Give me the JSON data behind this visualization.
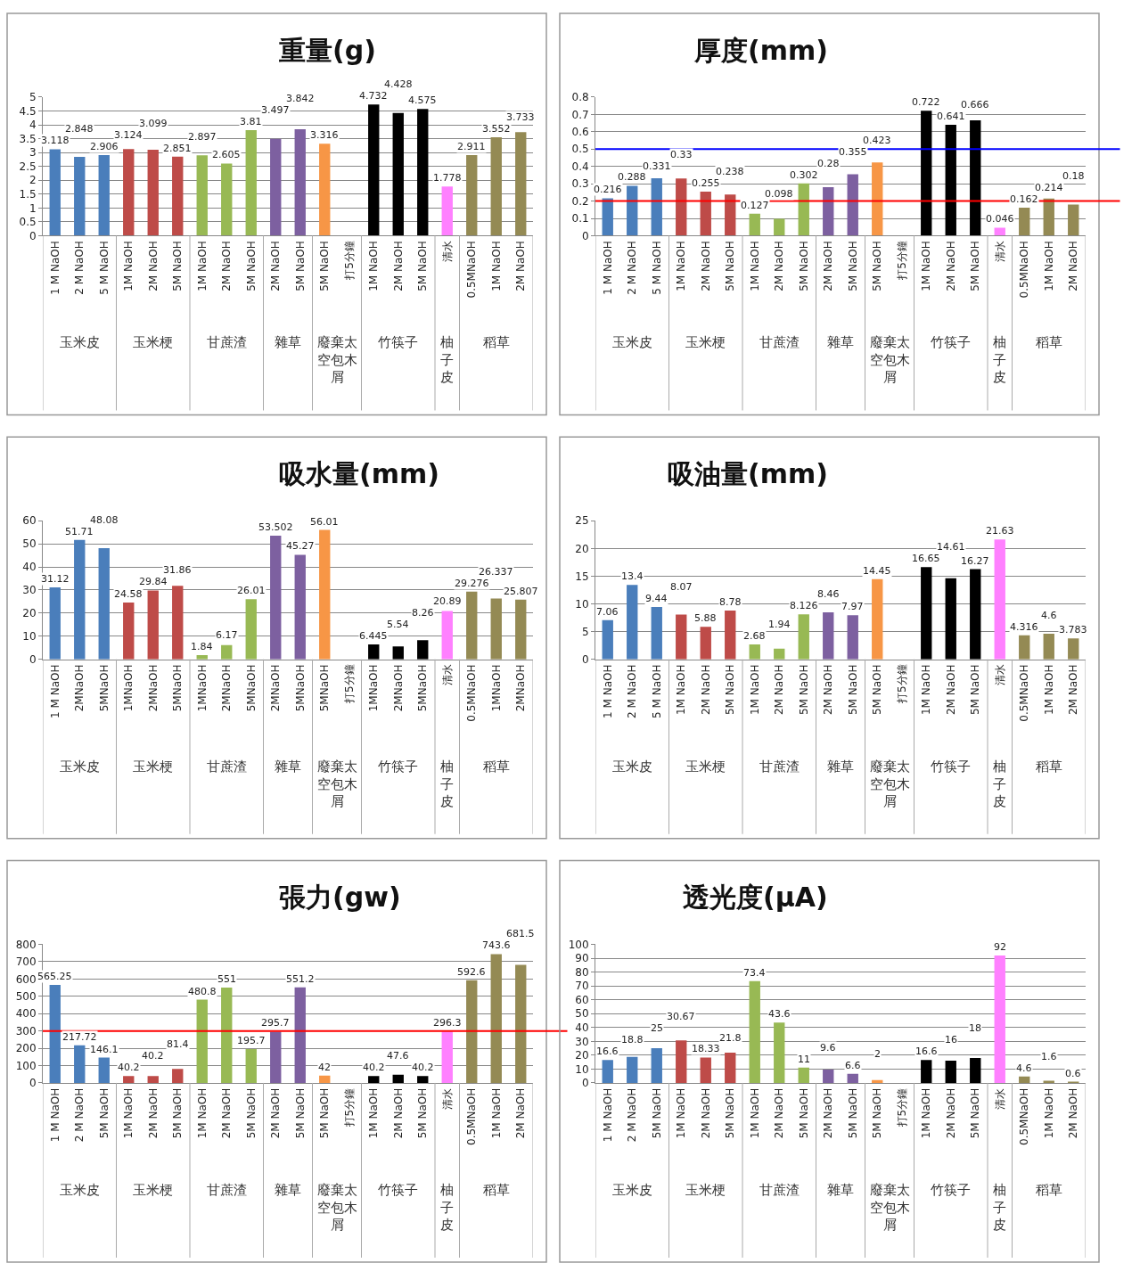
{
  "chart_data": [
    {
      "type": "bar",
      "title": "重量(g)",
      "categories": [
        "1 M NaOH",
        "2 M NaOH",
        "5 M NaOH",
        "1M NaOH",
        "2M NaOH",
        "5M NaOH",
        "1M NaOH",
        "2M NaOH",
        "5M NaOH",
        "2M NaOH",
        "5M NaOH",
        "5M NaOH",
        "打5分鐘",
        "1M NaOH",
        "2M NaOH",
        "5M NaOH",
        "清水",
        "0.5MNaOH",
        "1M NaOH",
        "2M NaOH"
      ],
      "annotations": [
        "玉米皮",
        "玉米梗",
        "甘蔗渣",
        "雜草",
        "廢棄太空包木屑",
        "竹筷子",
        "柚子皮",
        "稻草"
      ],
      "values": [
        3.118,
        2.848,
        2.906,
        3.124,
        3.099,
        2.851,
        2.897,
        2.605,
        3.81,
        3.497,
        3.842,
        3.316,
        null,
        4.732,
        4.428,
        4.575,
        1.778,
        2.911,
        3.552,
        3.733
      ],
      "colors": [
        "#4a7ebb",
        "#4a7ebb",
        "#4a7ebb",
        "#be4b48",
        "#be4b48",
        "#be4b48",
        "#98b954",
        "#98b954",
        "#98b954",
        "#7d60a0",
        "#7d60a0",
        "#f79646",
        "#f79646",
        "#000000",
        "#000000",
        "#000000",
        "#ff80ff",
        "#948a54",
        "#948a54",
        "#948a54"
      ],
      "ylim": [
        0,
        5
      ],
      "yticks": [
        0,
        0.5,
        1,
        1.5,
        2,
        2.5,
        3,
        3.5,
        4,
        4.5,
        5
      ],
      "grid": "y",
      "data_labels": true
    },
    {
      "type": "bar",
      "title": "厚度(mm)",
      "categories": [
        "1 M NaOH",
        "2 M NaOH",
        "5 M NaOH",
        "1M NaOH",
        "2M NaOH",
        "5M NaOH",
        "1M NaOH",
        "2M NaOH",
        "5M NaOH",
        "2M NaOH",
        "5M NaOH",
        "5M NaOH",
        "打5分鐘",
        "1M NaOH",
        "2M NaOH",
        "5M NaOH",
        "清水",
        "0.5MNaOH",
        "1M NaOH",
        "2M NaOH"
      ],
      "annotations": [
        "玉米皮",
        "玉米梗",
        "甘蔗渣",
        "雜草",
        "廢棄太空包木屑",
        "竹筷子",
        "柚子皮",
        "稻草"
      ],
      "values": [
        0.216,
        0.288,
        0.331,
        0.33,
        0.255,
        0.238,
        0.127,
        0.098,
        0.302,
        0.28,
        0.355,
        0.423,
        null,
        0.722,
        0.641,
        0.666,
        0.046,
        0.162,
        0.214,
        0.18
      ],
      "colors": [
        "#4a7ebb",
        "#4a7ebb",
        "#4a7ebb",
        "#be4b48",
        "#be4b48",
        "#be4b48",
        "#98b954",
        "#98b954",
        "#98b954",
        "#7d60a0",
        "#7d60a0",
        "#f79646",
        "#f79646",
        "#000000",
        "#000000",
        "#000000",
        "#ff80ff",
        "#948a54",
        "#948a54",
        "#948a54"
      ],
      "ylim": [
        0,
        0.8
      ],
      "yticks": [
        0,
        0.1,
        0.2,
        0.3,
        0.4,
        0.5,
        0.6,
        0.7,
        0.8
      ],
      "grid": "y",
      "data_labels": true,
      "ref_lines": [
        {
          "axis": "y",
          "value": 0.5,
          "color": "#0000ff"
        },
        {
          "axis": "y",
          "value": 0.2,
          "color": "#ff0000"
        }
      ]
    },
    {
      "type": "bar",
      "title": "吸水量(mm)",
      "categories": [
        "1 M NaOH",
        "2MNaOH",
        "5MNaOH",
        "1MNaOH",
        "2MNaOH",
        "5MNaOH",
        "1MNaOH",
        "2MNaOH",
        "5MNaOH",
        "2MNaOH",
        "5MNaOH",
        "5MNaOH",
        "打5分鐘",
        "1MNaOH",
        "2MNaOH",
        "5MNaOH",
        "清水",
        "0.5MNaOH",
        "1MNaOH",
        "2MNaOH"
      ],
      "annotations": [
        "玉米皮",
        "玉米梗",
        "甘蔗渣",
        "雜草",
        "廢棄太空包木屑",
        "竹筷子",
        "柚子皮",
        "稻草"
      ],
      "values": [
        31.12,
        51.71,
        48.08,
        24.58,
        29.84,
        31.86,
        1.84,
        6.17,
        26.01,
        53.502,
        45.27,
        56.01,
        null,
        6.445,
        5.54,
        8.26,
        20.89,
        29.276,
        26.337,
        25.807
      ],
      "colors": [
        "#4a7ebb",
        "#4a7ebb",
        "#4a7ebb",
        "#be4b48",
        "#be4b48",
        "#be4b48",
        "#98b954",
        "#98b954",
        "#98b954",
        "#7d60a0",
        "#7d60a0",
        "#f79646",
        "#f79646",
        "#000000",
        "#000000",
        "#000000",
        "#ff80ff",
        "#948a54",
        "#948a54",
        "#948a54"
      ],
      "ylim": [
        0,
        60
      ],
      "yticks": [
        0,
        10,
        20,
        30,
        40,
        50,
        60
      ],
      "grid": "y",
      "data_labels": true
    },
    {
      "type": "bar",
      "title": "吸油量(mm)",
      "categories": [
        "1 M NaOH",
        "2 M NaOH",
        "5 M NaOH",
        "1M NaOH",
        "2M NaOH",
        "5M NaOH",
        "1M NaOH",
        "2M NaOH",
        "5M NaOH",
        "2M NaOH",
        "5M NaOH",
        "5M NaOH",
        "打5分鐘",
        "1M NaOH",
        "2M NaOH",
        "5M NaOH",
        "清水",
        "0.5MNaOH",
        "1M NaOH",
        "2M NaOH"
      ],
      "annotations": [
        "玉米皮",
        "玉米梗",
        "甘蔗渣",
        "雜草",
        "廢棄太空包木屑",
        "竹筷子",
        "柚子皮",
        "稻草"
      ],
      "values": [
        7.06,
        13.4,
        9.44,
        8.07,
        5.88,
        8.78,
        2.68,
        1.94,
        8.126,
        8.46,
        7.97,
        14.45,
        null,
        16.65,
        14.61,
        16.27,
        21.63,
        4.316,
        4.6,
        3.783
      ],
      "colors": [
        "#4a7ebb",
        "#4a7ebb",
        "#4a7ebb",
        "#be4b48",
        "#be4b48",
        "#be4b48",
        "#98b954",
        "#98b954",
        "#98b954",
        "#7d60a0",
        "#7d60a0",
        "#f79646",
        "#f79646",
        "#000000",
        "#000000",
        "#000000",
        "#ff80ff",
        "#948a54",
        "#948a54",
        "#948a54"
      ],
      "ylim": [
        0,
        25
      ],
      "yticks": [
        0,
        5,
        10,
        15,
        20,
        25
      ],
      "grid": "y",
      "data_labels": true
    },
    {
      "type": "bar",
      "title": "張力(gw)",
      "categories": [
        "1 M NaOH",
        "2 M NaOH",
        "5M NaOH",
        "1M NaOH",
        "2M NaOH",
        "5M NaOH",
        "1M NaOH",
        "2M NaOH",
        "5M NaOH",
        "2M NaOH",
        "5M NaOH",
        "5M NaOH",
        "打5分鐘",
        "1M NaOH",
        "2M NaOH",
        "5M NaOH",
        "清水",
        "0.5MNaOH",
        "1M NaOH",
        "2M NaOH"
      ],
      "annotations": [
        "玉米皮",
        "玉米梗",
        "甘蔗渣",
        "雜草",
        "廢棄太空包木屑",
        "竹筷子",
        "柚子皮",
        "稻草"
      ],
      "values": [
        565.25,
        217.72,
        146.1,
        40.2,
        40.2,
        81.4,
        480.8,
        551,
        195.7,
        295.7,
        551.2,
        42,
        null,
        40.2,
        47.6,
        40.2,
        296.3,
        592.6,
        743.6,
        681.5
      ],
      "colors": [
        "#4a7ebb",
        "#4a7ebb",
        "#4a7ebb",
        "#be4b48",
        "#be4b48",
        "#be4b48",
        "#98b954",
        "#98b954",
        "#98b954",
        "#7d60a0",
        "#7d60a0",
        "#f79646",
        "#f79646",
        "#000000",
        "#000000",
        "#000000",
        "#ff80ff",
        "#948a54",
        "#948a54",
        "#948a54"
      ],
      "ylim": [
        0,
        800
      ],
      "yticks": [
        0,
        100,
        200,
        300,
        400,
        500,
        600,
        700,
        800
      ],
      "grid": "y",
      "data_labels": true,
      "ref_lines": [
        {
          "axis": "y",
          "value": 300,
          "color": "#ff0000"
        }
      ]
    },
    {
      "type": "bar",
      "title": "透光度(μA)",
      "categories": [
        "1 M NaOH",
        "2 M NaOH",
        "5M NaOH",
        "1M NaOH",
        "2M NaOH",
        "5M NaOH",
        "1M NaOH",
        "2M NaOH",
        "5M NaOH",
        "2M NaOH",
        "5M NaOH",
        "5M NaOH",
        "打5分鐘",
        "1M NaOH",
        "2M NaOH",
        "5M NaOH",
        "清水",
        "0.5MNaOH",
        "1M NaOH",
        "2M NaOH"
      ],
      "annotations": [
        "玉米皮",
        "玉米梗",
        "甘蔗渣",
        "雜草",
        "廢棄太空包木屑",
        "竹筷子",
        "柚子皮",
        "稻草"
      ],
      "values": [
        16.6,
        18.8,
        25,
        30.67,
        18.33,
        21.8,
        73.4,
        43.6,
        11,
        9.6,
        6.6,
        2,
        null,
        16.6,
        16,
        18,
        92,
        4.6,
        1.6,
        0.6
      ],
      "colors": [
        "#4a7ebb",
        "#4a7ebb",
        "#4a7ebb",
        "#be4b48",
        "#be4b48",
        "#be4b48",
        "#98b954",
        "#98b954",
        "#98b954",
        "#7d60a0",
        "#7d60a0",
        "#f79646",
        "#f79646",
        "#000000",
        "#000000",
        "#000000",
        "#ff80ff",
        "#948a54",
        "#948a54",
        "#948a54"
      ],
      "ylim": [
        0,
        100
      ],
      "yticks": [
        0,
        10,
        20,
        30,
        40,
        50,
        60,
        70,
        80,
        90,
        100
      ],
      "grid": "y",
      "data_labels": true
    }
  ]
}
